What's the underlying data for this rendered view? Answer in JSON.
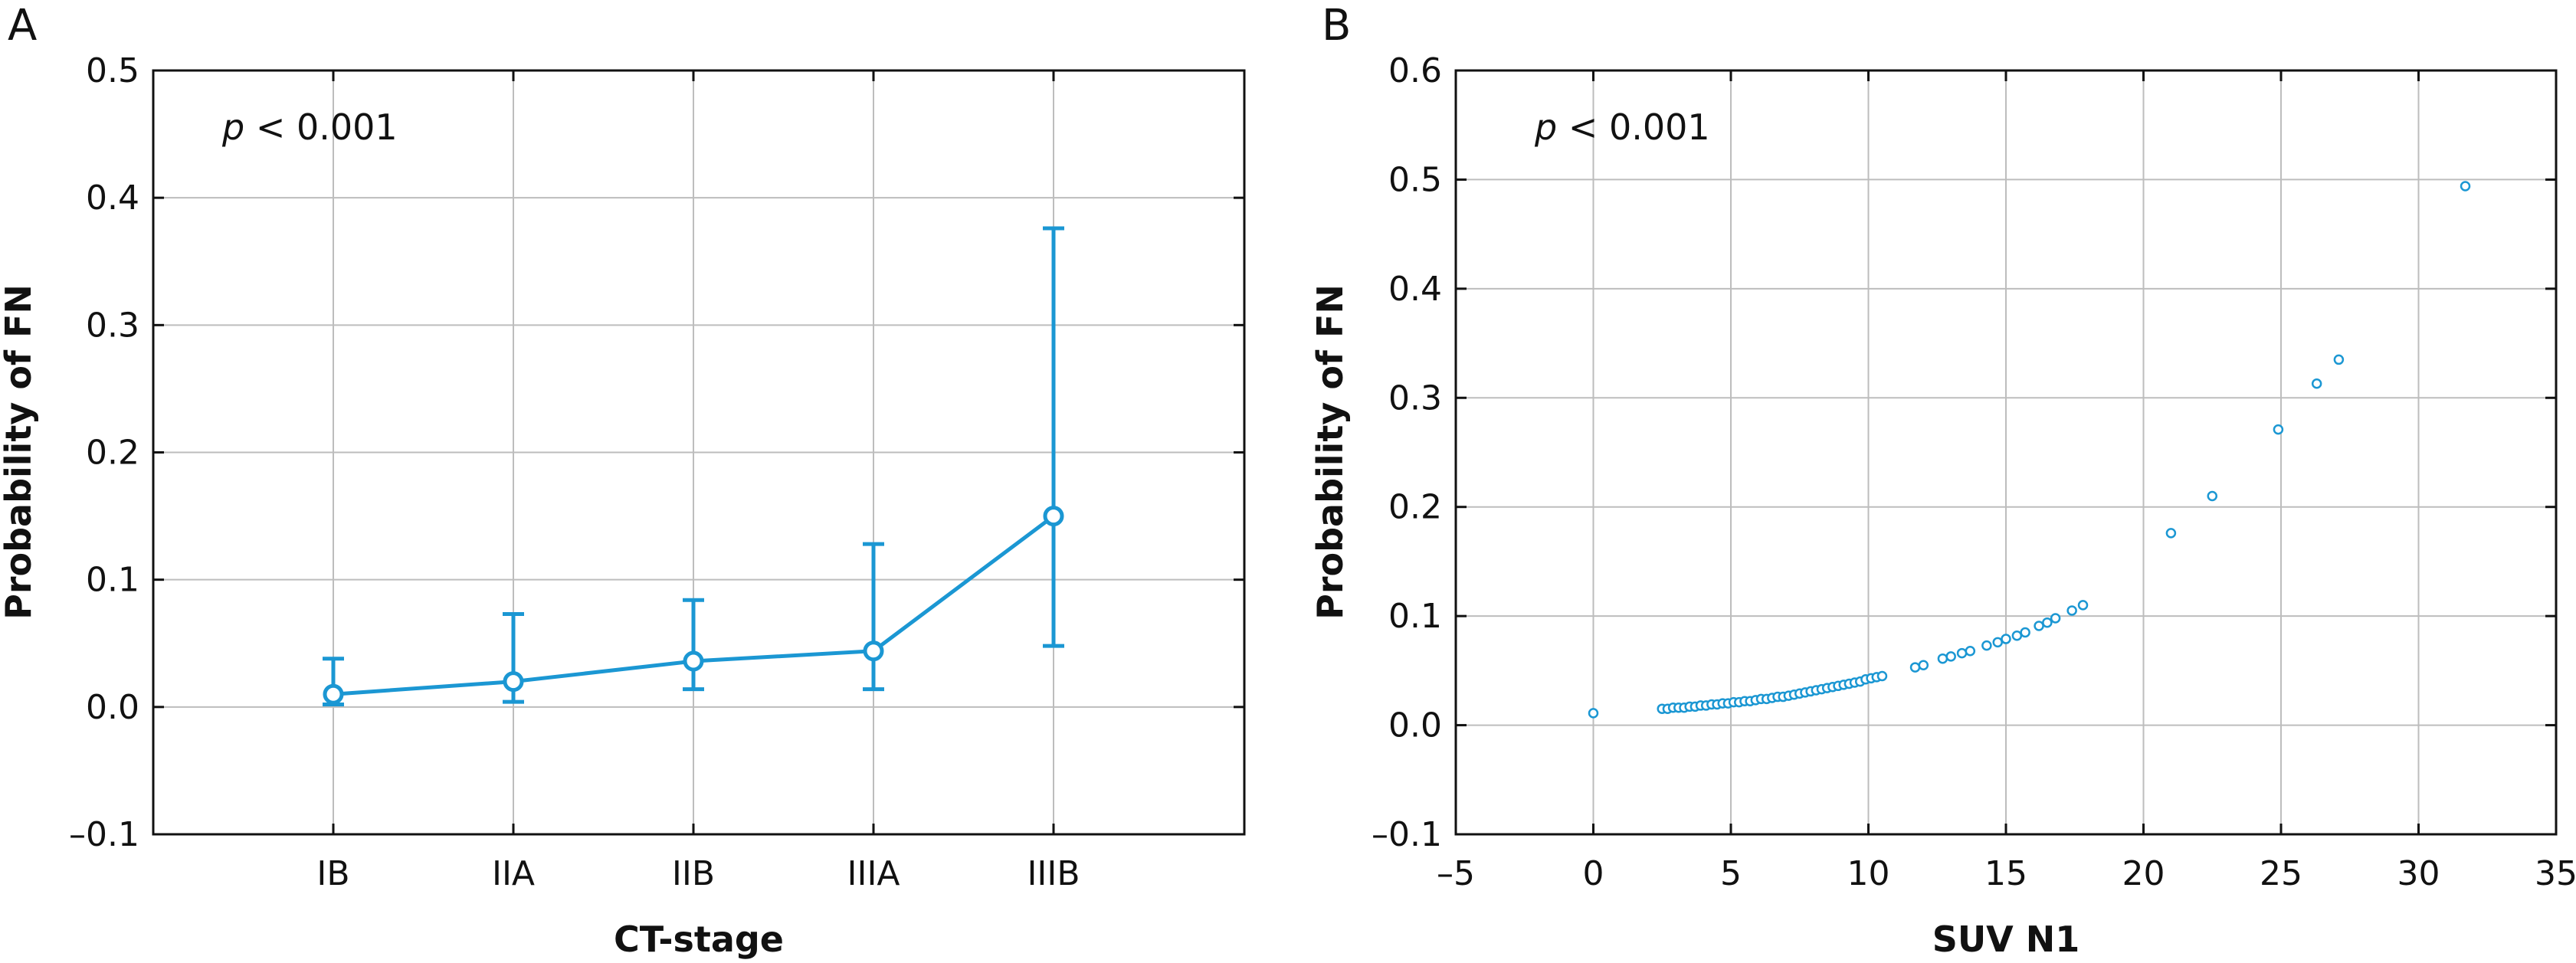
{
  "accent_color": "#1b97d3",
  "chart_data": [
    {
      "panel": "A",
      "type": "line",
      "annotation": {
        "prefix": "p",
        "text": " < 0.001"
      },
      "xlabel": "CT-stage",
      "ylabel": "Probability of FN",
      "categories": [
        "IB",
        "IIA",
        "IIB",
        "IIIA",
        "IIIB"
      ],
      "values": [
        0.01,
        0.02,
        0.036,
        0.044,
        0.15
      ],
      "error_low": [
        0.002,
        0.004,
        0.014,
        0.014,
        0.048
      ],
      "error_high": [
        0.038,
        0.073,
        0.084,
        0.128,
        0.376
      ],
      "ylim": [
        -0.1,
        0.5
      ],
      "yticks": [
        -0.1,
        0.0,
        0.1,
        0.2,
        0.3,
        0.4,
        0.5
      ],
      "ytick_labels": [
        "–0.1",
        "0.0",
        "0.1",
        "0.2",
        "0.3",
        "0.4",
        "0.5"
      ],
      "grid": true
    },
    {
      "panel": "B",
      "type": "scatter",
      "annotation": {
        "prefix": "p",
        "text": " < 0.001"
      },
      "xlabel": "SUV N1",
      "ylabel": "Probability of FN",
      "xlim": [
        -5,
        35
      ],
      "ylim": [
        -0.1,
        0.6
      ],
      "xticks": [
        -5,
        0,
        5,
        10,
        15,
        20,
        25,
        30,
        35
      ],
      "xtick_labels": [
        "–5",
        "0",
        "5",
        "10",
        "15",
        "20",
        "25",
        "30",
        "35"
      ],
      "yticks": [
        -0.1,
        0.0,
        0.1,
        0.2,
        0.3,
        0.4,
        0.5,
        0.6
      ],
      "ytick_labels": [
        "–0.1",
        "0.0",
        "0.1",
        "0.2",
        "0.3",
        "0.4",
        "0.5",
        "0.6"
      ],
      "grid": true,
      "points": [
        [
          0.0,
          0.011
        ],
        [
          2.5,
          0.015
        ],
        [
          2.7,
          0.015
        ],
        [
          2.9,
          0.016
        ],
        [
          3.1,
          0.016
        ],
        [
          3.3,
          0.016
        ],
        [
          3.5,
          0.017
        ],
        [
          3.7,
          0.017
        ],
        [
          3.9,
          0.018
        ],
        [
          4.1,
          0.018
        ],
        [
          4.3,
          0.019
        ],
        [
          4.5,
          0.019
        ],
        [
          4.7,
          0.02
        ],
        [
          4.9,
          0.02
        ],
        [
          5.1,
          0.021
        ],
        [
          5.3,
          0.021
        ],
        [
          5.5,
          0.022
        ],
        [
          5.7,
          0.022
        ],
        [
          5.9,
          0.023
        ],
        [
          6.1,
          0.024
        ],
        [
          6.3,
          0.024
        ],
        [
          6.5,
          0.025
        ],
        [
          6.7,
          0.026
        ],
        [
          6.9,
          0.026
        ],
        [
          7.1,
          0.027
        ],
        [
          7.3,
          0.028
        ],
        [
          7.5,
          0.029
        ],
        [
          7.7,
          0.03
        ],
        [
          7.9,
          0.031
        ],
        [
          8.1,
          0.032
        ],
        [
          8.3,
          0.033
        ],
        [
          8.5,
          0.034
        ],
        [
          8.7,
          0.035
        ],
        [
          8.9,
          0.036
        ],
        [
          9.1,
          0.037
        ],
        [
          9.3,
          0.038
        ],
        [
          9.5,
          0.039
        ],
        [
          9.7,
          0.04
        ],
        [
          9.9,
          0.042
        ],
        [
          10.1,
          0.043
        ],
        [
          10.3,
          0.044
        ],
        [
          10.5,
          0.045
        ],
        [
          11.7,
          0.053
        ],
        [
          12.0,
          0.055
        ],
        [
          12.7,
          0.061
        ],
        [
          13.0,
          0.063
        ],
        [
          13.4,
          0.066
        ],
        [
          13.7,
          0.068
        ],
        [
          14.3,
          0.073
        ],
        [
          14.7,
          0.076
        ],
        [
          15.0,
          0.079
        ],
        [
          15.4,
          0.082
        ],
        [
          15.7,
          0.085
        ],
        [
          16.2,
          0.091
        ],
        [
          16.5,
          0.094
        ],
        [
          16.8,
          0.098
        ],
        [
          17.4,
          0.105
        ],
        [
          17.8,
          0.11
        ],
        [
          21.0,
          0.176
        ],
        [
          22.5,
          0.21
        ],
        [
          24.9,
          0.271
        ],
        [
          26.3,
          0.313
        ],
        [
          27.1,
          0.335
        ],
        [
          31.7,
          0.494
        ]
      ]
    }
  ]
}
